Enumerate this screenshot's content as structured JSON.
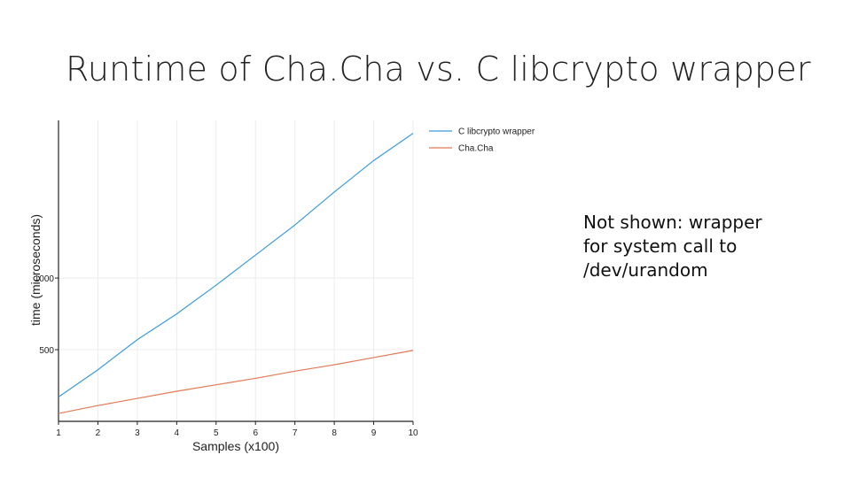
{
  "slide": {
    "title": "Runtime of Cha.Cha vs. C libcrypto wrapper",
    "note_lines": [
      "Not shown: wrapper",
      "for system call to",
      "/dev/urandom"
    ]
  },
  "chart_data": {
    "type": "line",
    "xlabel": "Samples (x100)",
    "ylabel": "time (microseconds)",
    "x": [
      1,
      2,
      3,
      4,
      5,
      6,
      7,
      8,
      9,
      10
    ],
    "xlim": [
      1,
      10
    ],
    "ylim": [
      0,
      2100
    ],
    "yticks": [
      500,
      1000
    ],
    "ytick_labels": [
      "500",
      "1000"
    ],
    "grid": true,
    "legend": "top-right",
    "series": [
      {
        "name": "C libcrypto wrapper",
        "color": "#3a9bdc",
        "values": [
          170,
          360,
          570,
          750,
          950,
          1160,
          1370,
          1600,
          1820,
          2010
        ]
      },
      {
        "name": "Cha.Cha",
        "color": "#e07a55",
        "values": [
          55,
          110,
          160,
          210,
          255,
          300,
          350,
          395,
          445,
          495
        ]
      }
    ]
  }
}
